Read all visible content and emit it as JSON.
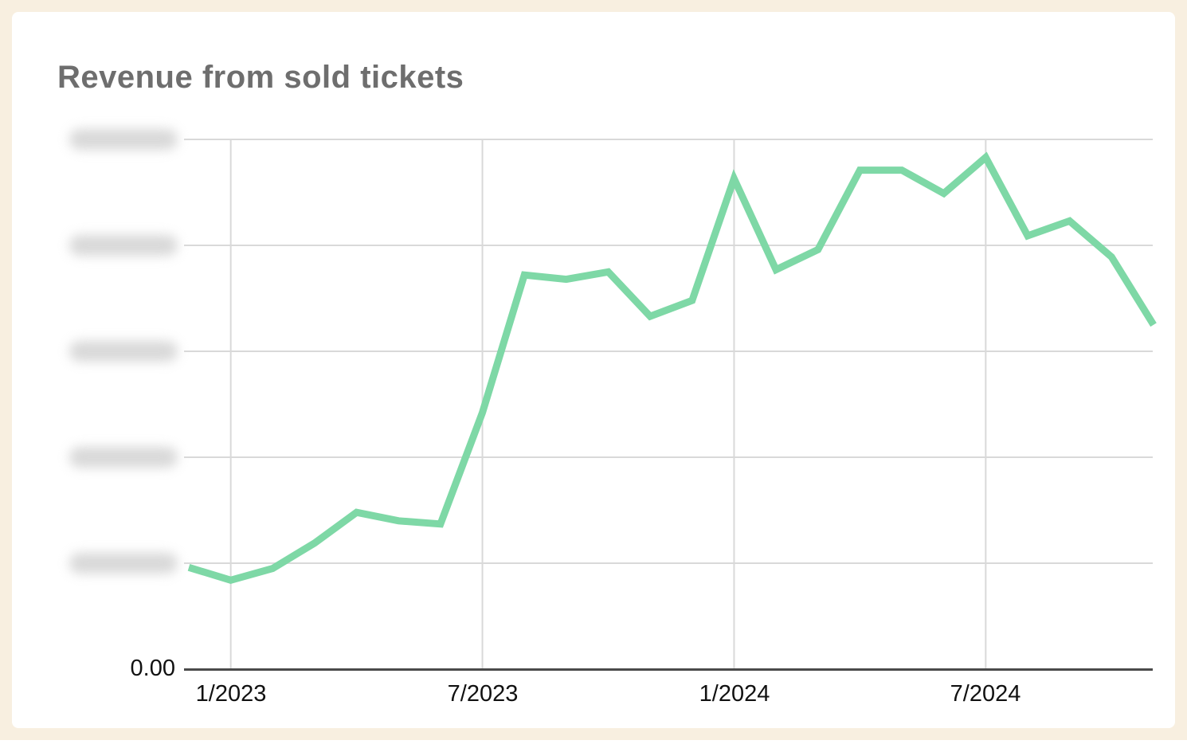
{
  "page": {
    "background_color": "#f8efe0",
    "card_background_color": "#ffffff"
  },
  "chart": {
    "title": "Revenue from sold tickets",
    "title_color": "#6e6e6e",
    "line_color": "#7ed8a6",
    "grid_color": "#d9d9d9",
    "axis_line_color": "#4a4a4a",
    "y_axis": {
      "zero_label": "0.00",
      "redacted_tick_count": 5,
      "redaction_note": "upper y-axis tick labels are blurred beyond legibility in the screenshot"
    },
    "x_axis": {
      "tick_labels": [
        "1/2023",
        "7/2023",
        "1/2024",
        "7/2024"
      ]
    }
  },
  "chart_data": {
    "type": "line",
    "title": "Revenue from sold tickets",
    "x": [
      "12/2022",
      "1/2023",
      "2/2023",
      "3/2023",
      "4/2023",
      "5/2023",
      "6/2023",
      "7/2023",
      "8/2023",
      "9/2023",
      "10/2023",
      "11/2023",
      "12/2023",
      "1/2024",
      "2/2024",
      "3/2024",
      "4/2024",
      "5/2024",
      "6/2024",
      "7/2024",
      "8/2024",
      "9/2024",
      "10/2024",
      "11/2024"
    ],
    "series": [
      {
        "name": "Revenue",
        "values": [
          0.96,
          0.84,
          0.95,
          1.19,
          1.48,
          1.4,
          1.37,
          2.42,
          3.72,
          3.68,
          3.75,
          3.33,
          3.48,
          4.63,
          3.77,
          3.96,
          4.71,
          4.71,
          4.49,
          4.83,
          4.09,
          4.23,
          3.89,
          3.25
        ]
      }
    ],
    "y_unit": "gridline units; actual y tick values are blurred in the image, only 0.00 at the baseline is legible; 5 evenly spaced unlabeled gridlines above 0",
    "ylim": [
      0,
      5
    ],
    "x_tick_labels": [
      "1/2023",
      "7/2023",
      "1/2024",
      "7/2024"
    ],
    "x_tick_indices": [
      1,
      7,
      13,
      19
    ],
    "grid": true,
    "legend": false,
    "line_color": "#7ed8a6"
  }
}
